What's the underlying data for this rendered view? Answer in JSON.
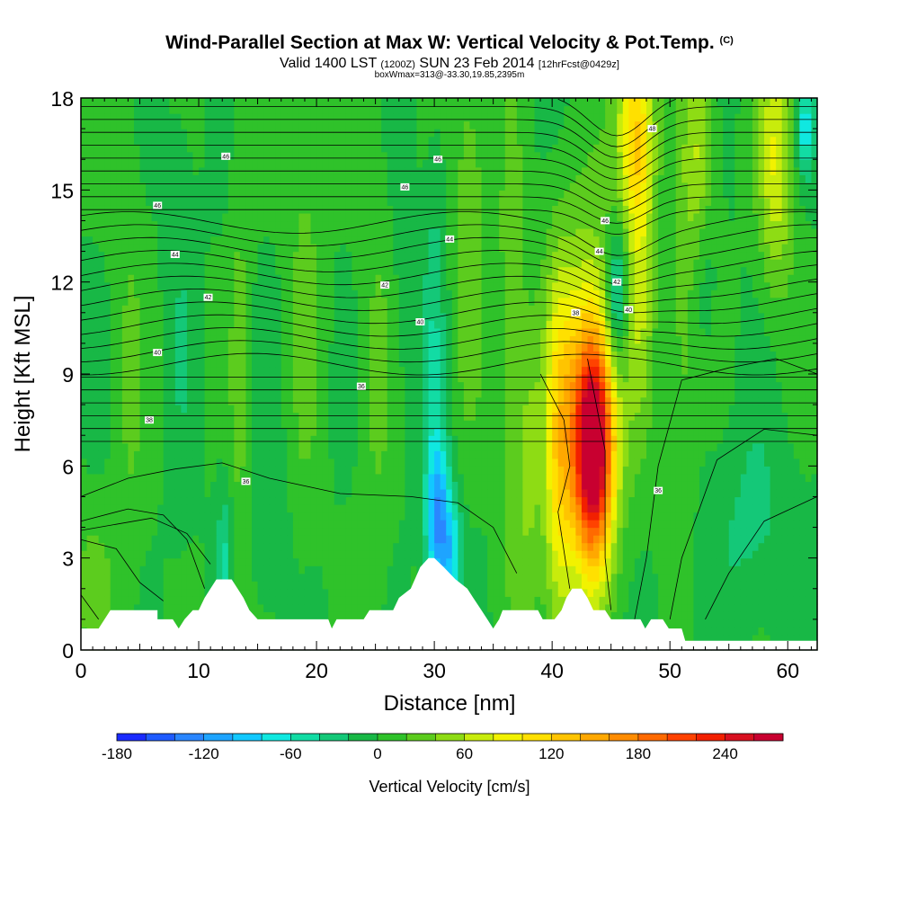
{
  "header": {
    "title": "Wind-Parallel Section at Max W: Vertical Velocity & Pot.Temp.",
    "title_mark": "(C)",
    "valid_prefix": "Valid 1400 LST",
    "valid_utc": "(1200Z)",
    "valid_date": "SUN 23 Feb 2014",
    "forecast": "[12hrFcst@0429z]",
    "box_info": "boxWmax=313@-33.30,19.85,2395m"
  },
  "chart_data": {
    "type": "heatmap",
    "xlabel": "Distance [nm]",
    "ylabel": "Height [Kft MSL]",
    "xlim": [
      0,
      62.5
    ],
    "ylim": [
      0,
      18
    ],
    "x_ticks": [
      0,
      10,
      20,
      30,
      40,
      50,
      60
    ],
    "y_ticks": [
      0,
      3,
      6,
      9,
      12,
      15,
      18
    ],
    "colorbar": {
      "label": "Vertical Velocity [cm/s]",
      "range": [
        -180,
        280
      ],
      "step": 20,
      "tick_values": [
        -180,
        -120,
        -60,
        0,
        60,
        120,
        180,
        240
      ],
      "colors": [
        "#1a2bff",
        "#1f5bff",
        "#2a86ff",
        "#1ea4ff",
        "#12c8ff",
        "#10e8e0",
        "#12dca4",
        "#14c878",
        "#18b846",
        "#2fc22a",
        "#5ccc1e",
        "#8edc14",
        "#c8ec0c",
        "#f2f200",
        "#ffe000",
        "#ffc400",
        "#ffa800",
        "#ff8c00",
        "#ff6a00",
        "#ff4200",
        "#f22000",
        "#d81020",
        "#c80030"
      ]
    },
    "base_value": 0,
    "vertical_velocity_features": [
      {
        "x": 43.5,
        "y_center": 6.5,
        "half_width": 1.6,
        "y_spread": 3.5,
        "value": 240
      },
      {
        "x": 43.0,
        "y_center": 8.0,
        "half_width": 2.6,
        "y_spread": 5.5,
        "value": 110
      },
      {
        "x": 40.5,
        "y_center": 6.0,
        "half_width": 1.3,
        "y_spread": 6.5,
        "value": 80
      },
      {
        "x": 47.0,
        "y_center": 17.0,
        "half_width": 1.6,
        "y_spread": 3.0,
        "value": 110
      },
      {
        "x": 47.5,
        "y_center": 12.5,
        "half_width": 1.2,
        "y_spread": 5.0,
        "value": 60
      },
      {
        "x": 45.5,
        "y_center": 11.5,
        "half_width": 0.9,
        "y_spread": 2.2,
        "value": -80
      },
      {
        "x": 30.3,
        "y_center": 4.2,
        "half_width": 1.0,
        "y_spread": 2.6,
        "value": -110
      },
      {
        "x": 31.5,
        "y_center": 3.0,
        "half_width": 0.9,
        "y_spread": 2.0,
        "value": -70
      },
      {
        "x": 30.0,
        "y_center": 10.0,
        "half_width": 0.9,
        "y_spread": 6.0,
        "value": -35
      },
      {
        "x": 33.0,
        "y_center": 14.0,
        "half_width": 1.3,
        "y_spread": 6.0,
        "value": 40
      },
      {
        "x": 36.5,
        "y_center": 10.0,
        "half_width": 1.2,
        "y_spread": 8.0,
        "value": 35
      },
      {
        "x": 38.0,
        "y_center": 6.0,
        "half_width": 1.0,
        "y_spread": 5.0,
        "value": 40
      },
      {
        "x": 52.5,
        "y_center": 16.0,
        "half_width": 1.4,
        "y_spread": 3.5,
        "value": 65
      },
      {
        "x": 51.0,
        "y_center": 9.5,
        "half_width": 1.2,
        "y_spread": 5.0,
        "value": 30
      },
      {
        "x": 53.0,
        "y_center": 13.0,
        "half_width": 1.0,
        "y_spread": 3.0,
        "value": -25
      },
      {
        "x": 59.0,
        "y_center": 16.0,
        "half_width": 1.5,
        "y_spread": 4.0,
        "value": 80
      },
      {
        "x": 61.5,
        "y_center": 17.0,
        "half_width": 0.8,
        "y_spread": 1.5,
        "value": -70
      },
      {
        "x": 57.0,
        "y_center": 4.0,
        "half_width": 3.5,
        "y_spread": 3.5,
        "value": -25
      },
      {
        "x": 12.2,
        "y_center": 3.0,
        "half_width": 0.7,
        "y_spread": 2.5,
        "value": -40
      },
      {
        "x": 13.5,
        "y_center": 9.0,
        "half_width": 0.9,
        "y_spread": 9.0,
        "value": 25
      },
      {
        "x": 4.0,
        "y_center": 9.0,
        "half_width": 1.5,
        "y_spread": 9.0,
        "value": 20
      },
      {
        "x": 8.5,
        "y_center": 12.0,
        "half_width": 1.2,
        "y_spread": 8.0,
        "value": -15
      },
      {
        "x": 19.0,
        "y_center": 12.0,
        "half_width": 1.5,
        "y_spread": 8.0,
        "value": 25
      },
      {
        "x": 25.0,
        "y_center": 9.0,
        "half_width": 1.5,
        "y_spread": 9.0,
        "value": 20
      },
      {
        "x": 27.5,
        "y_center": 14.0,
        "half_width": 1.0,
        "y_spread": 6.0,
        "value": -15
      },
      {
        "x": 16.0,
        "y_center": 4.0,
        "half_width": 1.5,
        "y_spread": 3.0,
        "value": -20
      },
      {
        "x": 1.0,
        "y_center": 2.0,
        "half_width": 1.5,
        "y_spread": 2.5,
        "value": 30
      }
    ],
    "terrain": [
      [
        0,
        0.7
      ],
      [
        1.5,
        0.7
      ],
      [
        2.5,
        1.3
      ],
      [
        6.5,
        1.3
      ],
      [
        6.5,
        1.0
      ],
      [
        7.8,
        1.0
      ],
      [
        8.3,
        0.7
      ],
      [
        8.8,
        1.0
      ],
      [
        9.5,
        1.3
      ],
      [
        10.0,
        1.3
      ],
      [
        10.5,
        1.7
      ],
      [
        11.0,
        2.0
      ],
      [
        11.5,
        2.3
      ],
      [
        12.8,
        2.3
      ],
      [
        13.3,
        2.0
      ],
      [
        13.8,
        1.7
      ],
      [
        14.3,
        1.3
      ],
      [
        15.0,
        1.0
      ],
      [
        21.0,
        1.0
      ],
      [
        21.3,
        0.7
      ],
      [
        21.7,
        1.0
      ],
      [
        24.0,
        1.0
      ],
      [
        24.5,
        1.3
      ],
      [
        26.5,
        1.3
      ],
      [
        27.0,
        1.7
      ],
      [
        28.0,
        2.0
      ],
      [
        28.8,
        2.7
      ],
      [
        29.5,
        3.0
      ],
      [
        30.0,
        3.0
      ],
      [
        30.8,
        2.7
      ],
      [
        31.8,
        2.3
      ],
      [
        32.8,
        2.0
      ],
      [
        33.3,
        1.7
      ],
      [
        34.0,
        1.3
      ],
      [
        34.5,
        1.0
      ],
      [
        35.0,
        0.7
      ],
      [
        35.5,
        1.0
      ],
      [
        35.8,
        1.3
      ],
      [
        38.8,
        1.3
      ],
      [
        39.2,
        1.0
      ],
      [
        40.2,
        1.0
      ],
      [
        40.8,
        1.3
      ],
      [
        41.2,
        1.7
      ],
      [
        41.7,
        2.0
      ],
      [
        42.5,
        2.0
      ],
      [
        43.0,
        1.7
      ],
      [
        43.5,
        1.3
      ],
      [
        44.5,
        1.3
      ],
      [
        45.0,
        1.0
      ],
      [
        47.5,
        1.0
      ],
      [
        47.9,
        0.7
      ],
      [
        48.4,
        1.0
      ],
      [
        49.4,
        1.0
      ],
      [
        49.9,
        0.7
      ],
      [
        51.0,
        0.7
      ],
      [
        51.3,
        0.3
      ],
      [
        62.5,
        0.3
      ]
    ],
    "theta_contours": {
      "unit": "C",
      "interval": 2,
      "labels": [
        {
          "text": "46",
          "x": 12.3,
          "y": 16.1
        },
        {
          "text": "46",
          "x": 6.5,
          "y": 14.5
        },
        {
          "text": "44",
          "x": 8.0,
          "y": 12.9
        },
        {
          "text": "42",
          "x": 10.8,
          "y": 11.5
        },
        {
          "text": "40",
          "x": 6.5,
          "y": 9.7
        },
        {
          "text": "38",
          "x": 5.8,
          "y": 7.5
        },
        {
          "text": "36",
          "x": 23.8,
          "y": 8.6
        },
        {
          "text": "36",
          "x": 14.0,
          "y": 5.5
        },
        {
          "text": "40",
          "x": 28.8,
          "y": 10.7
        },
        {
          "text": "42",
          "x": 25.8,
          "y": 11.9
        },
        {
          "text": "46",
          "x": 27.5,
          "y": 15.1
        },
        {
          "text": "46",
          "x": 30.3,
          "y": 16.0
        },
        {
          "text": "44",
          "x": 31.3,
          "y": 13.4
        },
        {
          "text": "46",
          "x": 44.5,
          "y": 14.0
        },
        {
          "text": "44",
          "x": 44.0,
          "y": 13.0
        },
        {
          "text": "42",
          "x": 45.5,
          "y": 12.0
        },
        {
          "text": "40",
          "x": 46.5,
          "y": 11.1
        },
        {
          "text": "38",
          "x": 42.0,
          "y": 11.0
        },
        {
          "text": "48",
          "x": 48.5,
          "y": 17.0
        },
        {
          "text": "36",
          "x": 49.0,
          "y": 5.2
        }
      ]
    }
  }
}
